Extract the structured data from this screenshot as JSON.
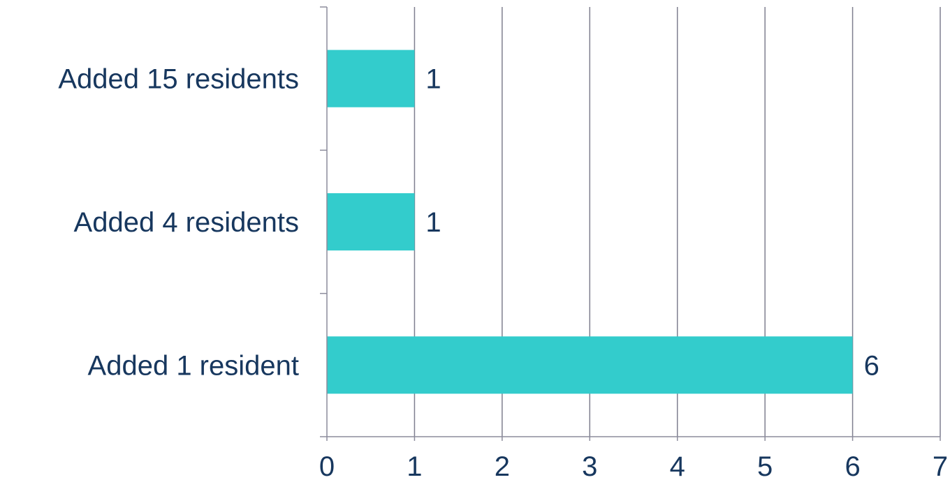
{
  "chart_data": {
    "type": "bar",
    "orientation": "horizontal",
    "categories": [
      "Added 15 residents",
      "Added 4 residents",
      "Added 1 resident"
    ],
    "values": [
      1,
      1,
      6
    ],
    "xlim": [
      0,
      7
    ],
    "xticks": [
      "0",
      "1",
      "2",
      "3",
      "4",
      "5",
      "6",
      "7"
    ],
    "grid": "vertical",
    "title": "",
    "xlabel": "",
    "ylabel": "",
    "colors": {
      "bar": "#33cccc",
      "text": "#17375e",
      "grid": "#7f7f8f",
      "axis": "#8c8c9c"
    }
  }
}
